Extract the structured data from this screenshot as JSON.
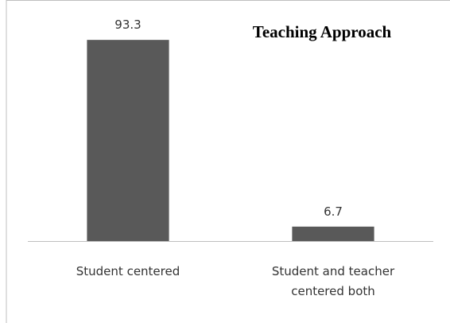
{
  "chart_data": {
    "type": "bar",
    "title": "Teaching Approach",
    "categories": [
      "Student centered",
      "Student  and teacher centered both"
    ],
    "values": [
      93.3,
      6.7
    ],
    "color": "#595959",
    "ylim": [
      0,
      100
    ]
  }
}
